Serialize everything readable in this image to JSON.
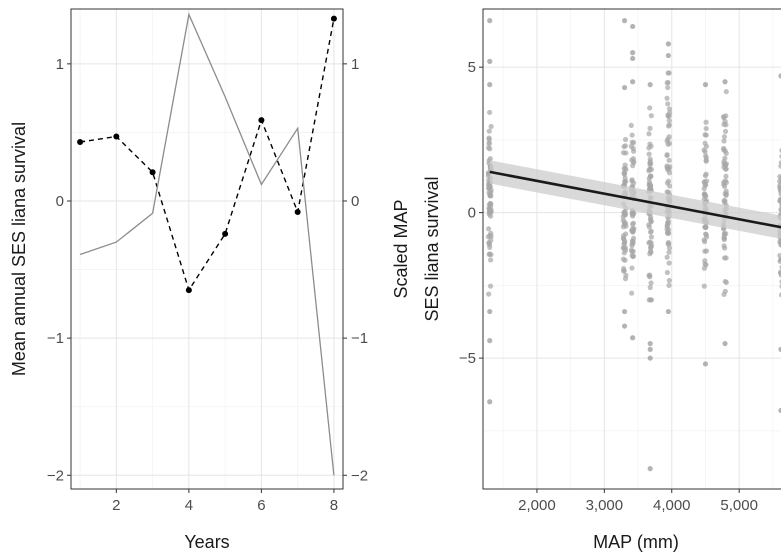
{
  "chart_data": [
    {
      "type": "line",
      "xlabel": "Years",
      "ylabel": "Mean annual SES liana survival",
      "y2label": "Scaled MAP",
      "xlim": [
        0.75,
        8.25
      ],
      "ylim": [
        -2.1,
        1.4
      ],
      "y2lim": [
        -2.1,
        1.4
      ],
      "xticks": [
        "2",
        "4",
        "6",
        "8"
      ],
      "yticks": [
        "−2",
        "−1",
        "0",
        "1"
      ],
      "y2ticks": [
        "−2",
        "−1",
        "0",
        "1"
      ],
      "grid": true,
      "series": [
        {
          "axis": "left",
          "style": "dashed-with-points",
          "color": "#000000",
          "x": [
            1,
            2,
            3,
            4,
            5,
            6,
            7,
            8
          ],
          "y": [
            0.43,
            0.47,
            0.21,
            -0.65,
            -0.24,
            0.59,
            -0.08,
            1.33
          ]
        },
        {
          "axis": "right",
          "style": "solid",
          "color": "#8c8c8c",
          "x": [
            1,
            2,
            3,
            4,
            5,
            6,
            7,
            8
          ],
          "y": [
            -0.39,
            -0.3,
            -0.09,
            1.36,
            0.76,
            0.12,
            0.53,
            -2.0
          ]
        }
      ]
    },
    {
      "type": "scatter",
      "xlabel": "MAP (mm)",
      "ylabel": "SES liana survival",
      "xlim": [
        1200,
        5650
      ],
      "ylim": [
        -9.5,
        7.0
      ],
      "xticks": [
        "2,000",
        "3,000",
        "4,000",
        "5,000"
      ],
      "yticks": [
        "−5",
        "0",
        "5"
      ],
      "grid": true,
      "point_color": "#a6a6a6",
      "groups": [
        {
          "x": 1300,
          "ymin": -2.8,
          "ymax": 3.8,
          "n": 70,
          "outliers": [
            6.6,
            5.2,
            4.4,
            -3.4,
            -4.4,
            -6.5
          ]
        },
        {
          "x": 3300,
          "ymin": -2.5,
          "ymax": 2.8,
          "n": 60,
          "outliers": [
            6.6,
            4.3,
            -3.4,
            -3.9
          ]
        },
        {
          "x": 3420,
          "ymin": -2.8,
          "ymax": 3.0,
          "n": 60,
          "outliers": [
            6.4,
            5.5,
            5.3,
            4.5,
            -4.3
          ]
        },
        {
          "x": 3680,
          "ymin": -3.0,
          "ymax": 3.6,
          "n": 70,
          "outliers": [
            4.4,
            -4.5,
            -4.7,
            -5.0,
            -8.8
          ]
        },
        {
          "x": 3950,
          "ymin": -2.5,
          "ymax": 4.8,
          "n": 70,
          "outliers": [
            5.8,
            5.4,
            -3.4
          ]
        },
        {
          "x": 4500,
          "ymin": -2.8,
          "ymax": 3.4,
          "n": 60,
          "outliers": [
            4.4,
            -5.2
          ]
        },
        {
          "x": 4790,
          "ymin": -3.0,
          "ymax": 4.4,
          "n": 60,
          "outliers": [
            4.5,
            -4.5
          ]
        },
        {
          "x": 5620,
          "ymin": -3.0,
          "ymax": 2.4,
          "n": 60,
          "outliers": [
            4.7,
            -4.7,
            -6.8
          ]
        }
      ],
      "fit_line": {
        "x": [
          1300,
          5620
        ],
        "y": [
          1.4,
          -0.5
        ],
        "color": "#1a1a1a"
      },
      "ci_band": {
        "x": [
          1300,
          5620
        ],
        "lower": [
          1.0,
          -0.9
        ],
        "upper": [
          1.8,
          -0.1
        ],
        "color": "#cccccc"
      }
    }
  ]
}
